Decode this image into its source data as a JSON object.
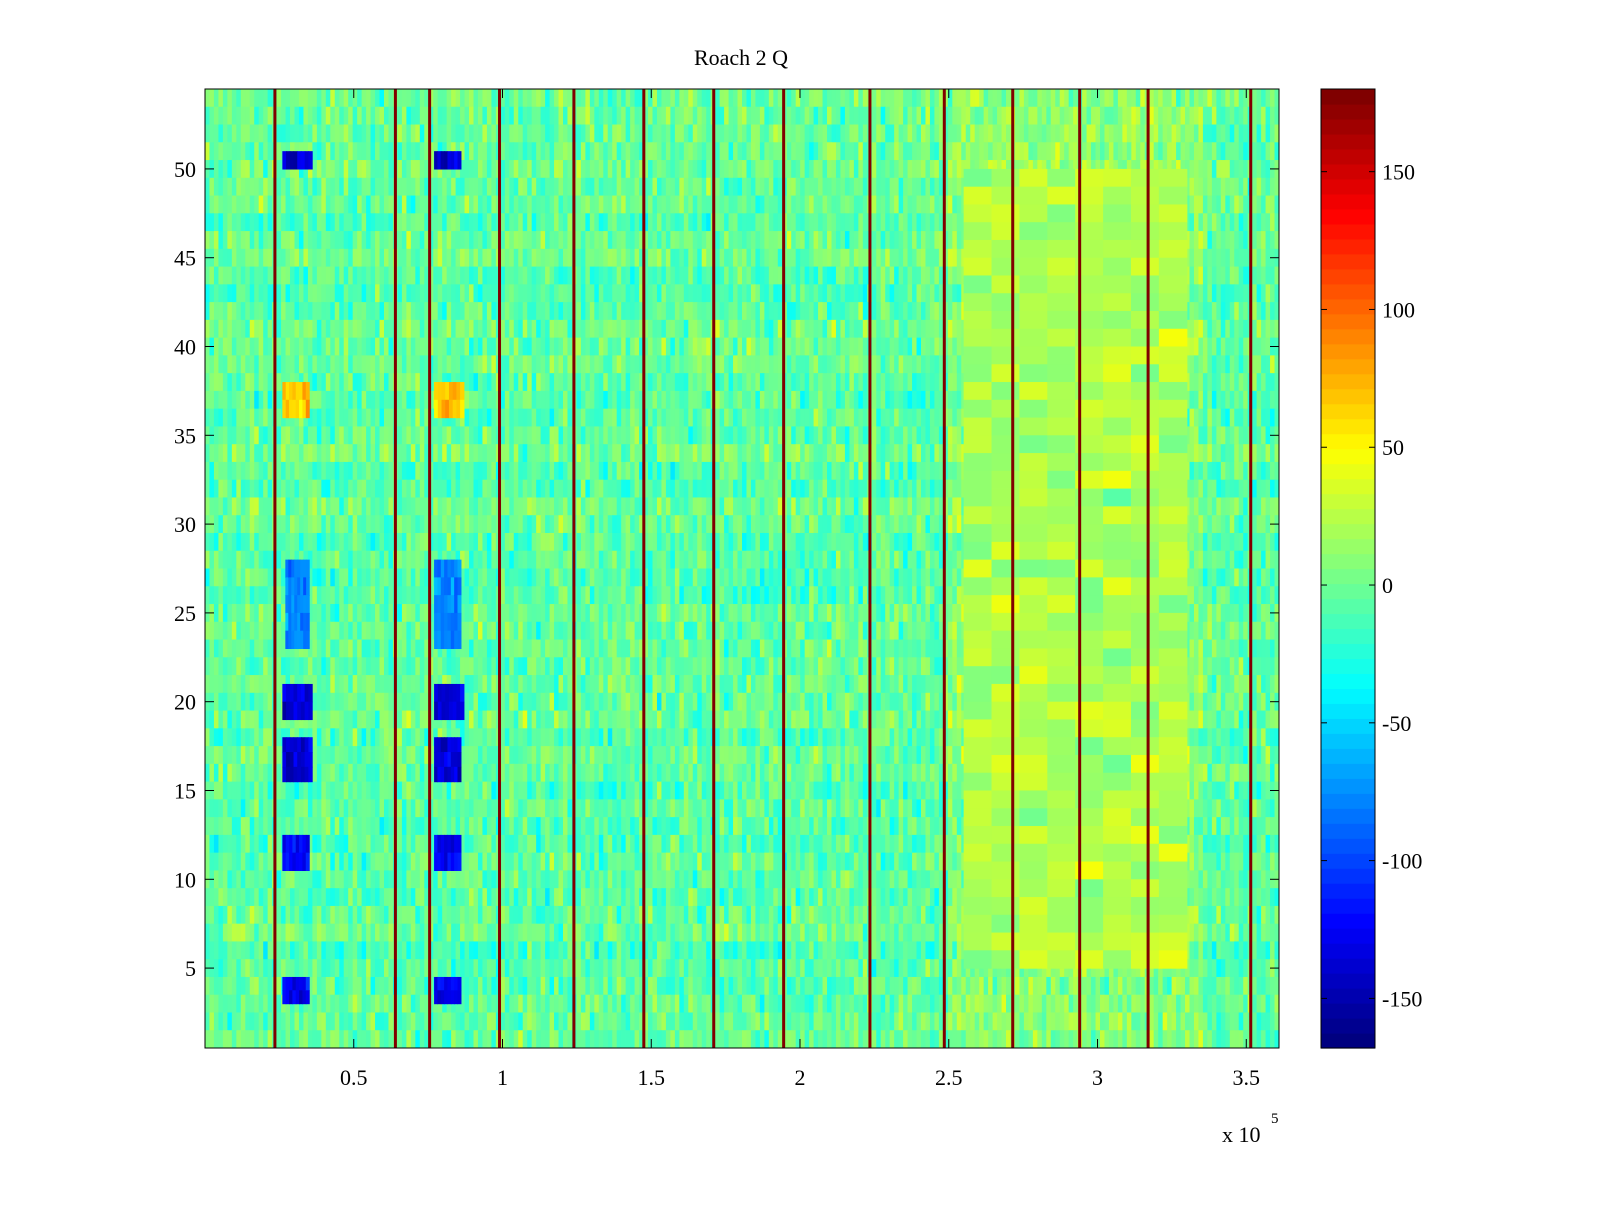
{
  "chart_data": {
    "type": "heatmap",
    "title": "Roach 2 Q",
    "xlabel": "",
    "ylabel": "",
    "x_multiplier_label": {
      "base": "x 10",
      "exponent": "5"
    },
    "xlim": [
      0.5,
      361000
    ],
    "ylim": [
      0.5,
      54.5
    ],
    "x_ticks": [
      {
        "value": 50000,
        "label": "0.5"
      },
      {
        "value": 100000,
        "label": "1"
      },
      {
        "value": 150000,
        "label": "1.5"
      },
      {
        "value": 200000,
        "label": "2"
      },
      {
        "value": 250000,
        "label": "2.5"
      },
      {
        "value": 300000,
        "label": "3"
      },
      {
        "value": 350000,
        "label": "3.5"
      }
    ],
    "y_ticks": [
      {
        "value": 5,
        "label": "5"
      },
      {
        "value": 10,
        "label": "10"
      },
      {
        "value": 15,
        "label": "15"
      },
      {
        "value": 20,
        "label": "20"
      },
      {
        "value": 25,
        "label": "25"
      },
      {
        "value": 30,
        "label": "30"
      },
      {
        "value": 35,
        "label": "35"
      },
      {
        "value": 40,
        "label": "40"
      },
      {
        "value": 45,
        "label": "45"
      },
      {
        "value": 50,
        "label": "50"
      }
    ],
    "rows": 54,
    "colormap": "jet",
    "clim": [
      -168,
      180
    ],
    "colorbar_ticks": [
      {
        "value": 150,
        "label": "150"
      },
      {
        "value": 100,
        "label": "100"
      },
      {
        "value": 50,
        "label": "50"
      },
      {
        "value": 0,
        "label": "0"
      },
      {
        "value": -50,
        "label": "-50"
      },
      {
        "value": -100,
        "label": "-100"
      },
      {
        "value": -150,
        "label": "-150"
      }
    ],
    "background_level": -5,
    "vertical_stripes": [
      {
        "x": 23500,
        "value": 180
      },
      {
        "x": 64000,
        "value": 180
      },
      {
        "x": 75500,
        "value": 180
      },
      {
        "x": 99000,
        "value": 180
      },
      {
        "x": 124000,
        "value": 180
      },
      {
        "x": 147500,
        "value": 180
      },
      {
        "x": 171000,
        "value": 180
      },
      {
        "x": 194500,
        "value": 180
      },
      {
        "x": 223500,
        "value": 180
      },
      {
        "x": 248500,
        "value": 180
      },
      {
        "x": 271500,
        "value": 180
      },
      {
        "x": 294000,
        "value": 180
      },
      {
        "x": 317000,
        "value": 180
      },
      {
        "x": 351500,
        "value": 180
      }
    ],
    "patches": [
      {
        "x0": 26000,
        "x1": 36000,
        "y0": 50,
        "y1": 51,
        "value": -140
      },
      {
        "x0": 77000,
        "x1": 86000,
        "y0": 50,
        "y1": 51,
        "value": -140
      },
      {
        "x0": 26000,
        "x1": 36000,
        "y0": 19,
        "y1": 21,
        "value": -140
      },
      {
        "x0": 77000,
        "x1": 87000,
        "y0": 19,
        "y1": 21,
        "value": -140
      },
      {
        "x0": 26000,
        "x1": 36000,
        "y0": 15.5,
        "y1": 18,
        "value": -140
      },
      {
        "x0": 77000,
        "x1": 86000,
        "y0": 15.5,
        "y1": 18,
        "value": -140
      },
      {
        "x0": 26000,
        "x1": 35000,
        "y0": 10.5,
        "y1": 12.5,
        "value": -120
      },
      {
        "x0": 77000,
        "x1": 86000,
        "y0": 10.5,
        "y1": 12.5,
        "value": -125
      },
      {
        "x0": 26000,
        "x1": 35000,
        "y0": 3,
        "y1": 4.5,
        "value": -130
      },
      {
        "x0": 77000,
        "x1": 86000,
        "y0": 3,
        "y1": 4.5,
        "value": -130
      },
      {
        "x0": 27000,
        "x1": 35000,
        "y0": 23,
        "y1": 28,
        "value": -80
      },
      {
        "x0": 77000,
        "x1": 86000,
        "y0": 23,
        "y1": 28,
        "value": -80
      },
      {
        "x0": 26000,
        "x1": 35000,
        "y0": 36,
        "y1": 38,
        "value": 70
      },
      {
        "x0": 77000,
        "x1": 87000,
        "y0": 36,
        "y1": 38,
        "value": 70
      },
      {
        "x0": 255000,
        "x1": 330000,
        "y0": 5,
        "y1": 50,
        "value": 22
      }
    ]
  }
}
